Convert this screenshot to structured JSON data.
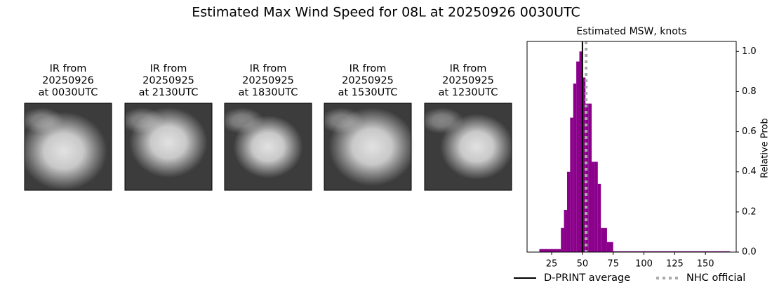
{
  "title": "Estimated Max Wind Speed for 08L at 20250926 0030UTC",
  "panels": [
    {
      "lines": [
        "IR from",
        "20250926",
        "at 0030UTC"
      ]
    },
    {
      "lines": [
        "IR from",
        "20250925",
        "at 2130UTC"
      ]
    },
    {
      "lines": [
        "IR from",
        "20250925",
        "at 1830UTC"
      ]
    },
    {
      "lines": [
        "IR from",
        "20250925",
        "at 1530UTC"
      ]
    },
    {
      "lines": [
        "IR from",
        "20250925",
        "at 1230UTC"
      ]
    }
  ],
  "chart_data": {
    "type": "histogram",
    "title": "Estimated MSW, knots",
    "y_label": "Relative Prob",
    "color": "#8b008b",
    "bins": [
      15,
      32.5,
      35,
      37.5,
      40,
      42.5,
      45,
      47.5,
      50,
      52.5,
      55,
      57.5,
      60,
      62.5,
      65,
      70,
      75,
      170
    ],
    "values": [
      0.015,
      0.12,
      0.21,
      0.4,
      0.67,
      0.84,
      0.95,
      1.0,
      0.87,
      0.74,
      0.74,
      0.45,
      0.45,
      0.34,
      0.12,
      0.05,
      0.004
    ],
    "xlim": [
      5,
      175
    ],
    "xticks": [
      25,
      50,
      75,
      100,
      125,
      150
    ],
    "ylim": [
      0,
      1.05
    ],
    "yticks": [
      {
        "value": 0,
        "label": "0.0"
      },
      0.2,
      0.4,
      0.6,
      0.8,
      {
        "value": 1,
        "label": "1.0"
      }
    ],
    "vlines": [
      {
        "name": "D-PRINT average",
        "value": 50,
        "color": "#000000",
        "style": "solid"
      },
      {
        "name": "NHC official",
        "value": 53,
        "color": "#aaaaaa",
        "style": "dotted"
      }
    ]
  }
}
